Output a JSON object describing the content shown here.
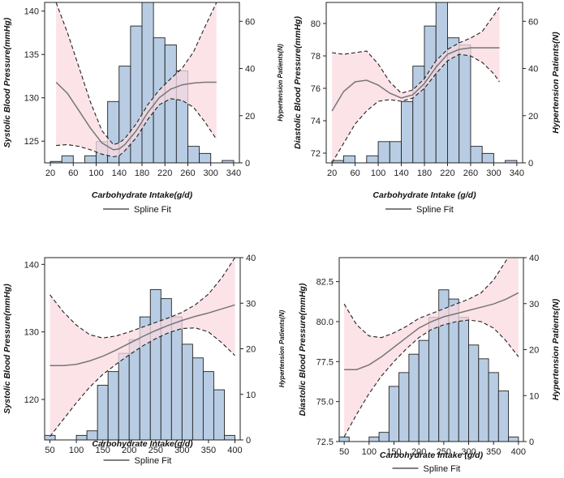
{
  "chart_data": [
    {
      "type": "bar",
      "title": "",
      "xlabel": "Carbohydrate Intake(g/d)",
      "ylabel": "Systolic Blood Pressure(mmHg)",
      "y2label": "Hypertension Patients(N)",
      "xlim": [
        10,
        350
      ],
      "ylim": [
        122.5,
        141
      ],
      "y2lim": [
        0,
        68
      ],
      "xticks": [
        20,
        60,
        100,
        140,
        180,
        220,
        260,
        300,
        340
      ],
      "yticks": [
        125,
        130,
        135,
        140
      ],
      "y2ticks": [
        0,
        20,
        40,
        60
      ],
      "bin_width": 20,
      "bins_center": [
        30,
        50,
        70,
        90,
        110,
        130,
        150,
        170,
        190,
        210,
        230,
        250,
        270,
        290,
        330
      ],
      "counts": [
        0.6,
        3,
        0,
        3,
        9,
        26,
        41,
        58,
        68,
        53,
        50,
        39,
        7,
        4,
        1
      ],
      "spline": {
        "x": [
          30,
          50,
          70,
          90,
          110,
          130,
          140,
          150,
          170,
          190,
          210,
          230,
          250,
          270,
          290,
          310
        ],
        "fit": [
          131.8,
          130.5,
          128.5,
          126.5,
          124.8,
          124.0,
          124.1,
          124.6,
          126.2,
          128.3,
          130.0,
          131.0,
          131.5,
          131.7,
          131.8,
          131.8
        ],
        "lower": [
          124.5,
          124.6,
          124.4,
          124.0,
          123.5,
          123.2,
          123.3,
          123.9,
          125.4,
          127.5,
          129.2,
          129.9,
          129.7,
          128.9,
          127.2,
          125.2
        ],
        "upper": [
          141.0,
          137.5,
          133.5,
          129.5,
          126.2,
          124.6,
          124.8,
          125.3,
          127.0,
          129.2,
          130.9,
          132.2,
          133.4,
          135.3,
          138.2,
          141.0
        ]
      },
      "legend": "Spline Fit"
    },
    {
      "type": "bar",
      "title": "",
      "xlabel": "Carbohydrate Intake (g/d)",
      "ylabel": "Diastolic Blood Pressure(mmHg)",
      "y2label": "Hypertension Patients(N)",
      "xlim": [
        10,
        350
      ],
      "ylim": [
        71.4,
        81.3
      ],
      "y2lim": [
        0,
        68
      ],
      "xticks": [
        20,
        60,
        100,
        140,
        180,
        220,
        260,
        300,
        340
      ],
      "yticks": [
        72,
        74,
        76,
        78,
        80
      ],
      "y2ticks": [
        0,
        20,
        40,
        60
      ],
      "bin_width": 20,
      "bins_center": [
        30,
        50,
        70,
        90,
        110,
        130,
        150,
        170,
        190,
        210,
        230,
        250,
        270,
        290,
        330
      ],
      "counts": [
        1,
        3,
        0,
        3,
        9,
        9,
        26,
        41,
        58,
        68,
        53,
        50,
        7,
        4,
        1
      ],
      "spline": {
        "x": [
          20,
          40,
          60,
          80,
          100,
          120,
          140,
          160,
          180,
          200,
          220,
          240,
          260,
          280,
          300,
          310
        ],
        "fit": [
          74.6,
          75.8,
          76.4,
          76.5,
          76.2,
          75.7,
          75.4,
          75.6,
          76.3,
          77.3,
          78.1,
          78.4,
          78.5,
          78.5,
          78.5,
          78.5
        ],
        "lower": [
          71.4,
          72.6,
          73.8,
          74.6,
          75.2,
          75.3,
          75.2,
          75.4,
          76.0,
          76.9,
          77.7,
          78.1,
          78.0,
          77.6,
          76.9,
          76.4
        ],
        "upper": [
          78.2,
          78.1,
          78.2,
          78.3,
          77.5,
          76.4,
          75.7,
          75.9,
          76.6,
          77.7,
          78.4,
          78.8,
          79.1,
          79.5,
          80.5,
          81.0
        ]
      },
      "legend": "Spline Fit"
    },
    {
      "type": "bar",
      "title": "",
      "xlabel": "Carbohydrate Intake(g/d)",
      "ylabel": "Systolic Blood Pressure(mmHg)",
      "y2label": "Hypertension Patients(N)",
      "xlim": [
        40,
        410
      ],
      "ylim": [
        114,
        141
      ],
      "y2lim": [
        0,
        40
      ],
      "xticks": [
        50,
        100,
        150,
        200,
        250,
        300,
        350,
        400
      ],
      "yticks": [
        120,
        130,
        140
      ],
      "y2ticks": [
        0,
        10,
        20,
        30,
        40
      ],
      "bin_width": 20,
      "bins_center": [
        50,
        90,
        110,
        130,
        150,
        170,
        190,
        210,
        230,
        250,
        270,
        290,
        310,
        330,
        350,
        370,
        390
      ],
      "counts": [
        1,
        0,
        1,
        2,
        12,
        15,
        19,
        22,
        27,
        33,
        31,
        27,
        21,
        18,
        15,
        11,
        1
      ],
      "spline": {
        "x": [
          50,
          75,
          100,
          125,
          150,
          175,
          200,
          225,
          250,
          275,
          300,
          325,
          350,
          375,
          400
        ],
        "fit": [
          125.0,
          125.0,
          125.2,
          125.7,
          126.4,
          127.3,
          128.3,
          129.3,
          130.2,
          131.0,
          131.7,
          132.3,
          132.8,
          133.4,
          134.0
        ],
        "lower": [
          114.5,
          117.0,
          119.5,
          121.8,
          123.7,
          125.2,
          126.6,
          127.9,
          129.0,
          129.9,
          130.5,
          130.6,
          130.0,
          128.4,
          126.5
        ],
        "upper": [
          135.5,
          133.0,
          131.0,
          129.6,
          129.1,
          129.4,
          130.0,
          130.7,
          131.4,
          132.1,
          132.9,
          134.0,
          135.6,
          138.0,
          141.0
        ]
      },
      "legend": "Spline Fit"
    },
    {
      "type": "bar",
      "title": "",
      "xlabel": "Carbohydrate Intake (g/d)",
      "ylabel": "Diastolic Blood Pressure(mmHg)",
      "y2label": "Hypertension Patients(N)",
      "xlim": [
        40,
        410
      ],
      "ylim": [
        72.5,
        84
      ],
      "y2lim": [
        0,
        40
      ],
      "xticks": [
        50,
        100,
        150,
        200,
        250,
        300,
        350,
        400
      ],
      "yticks": [
        72.5,
        75.0,
        77.5,
        80.0,
        82.5
      ],
      "y2ticks": [
        0,
        10,
        20,
        30,
        40
      ],
      "bin_width": 20,
      "bins_center": [
        50,
        90,
        110,
        130,
        150,
        170,
        190,
        210,
        230,
        250,
        270,
        290,
        310,
        330,
        350,
        370,
        390
      ],
      "counts": [
        1,
        0,
        1,
        2,
        12,
        15,
        19,
        22,
        27,
        33,
        31,
        27,
        21,
        18,
        15,
        11,
        1
      ],
      "spline": {
        "x": [
          50,
          75,
          100,
          125,
          150,
          175,
          200,
          225,
          250,
          275,
          300,
          325,
          350,
          375,
          400
        ],
        "fit": [
          77.0,
          77.0,
          77.3,
          77.8,
          78.4,
          79.0,
          79.6,
          80.0,
          80.3,
          80.5,
          80.7,
          80.9,
          81.1,
          81.4,
          81.8
        ],
        "lower": [
          72.8,
          74.2,
          75.5,
          76.6,
          77.5,
          78.3,
          79.0,
          79.5,
          79.8,
          80.0,
          80.1,
          80.0,
          79.6,
          78.8,
          77.8
        ],
        "upper": [
          81.1,
          79.8,
          79.1,
          79.0,
          79.3,
          79.7,
          80.2,
          80.5,
          80.8,
          81.1,
          81.4,
          81.8,
          82.6,
          83.8,
          85.0
        ]
      },
      "legend": "Spline Fit"
    }
  ],
  "colors": {
    "bar_fill": "#b8cde4",
    "bar_stroke": "#222222",
    "band_fill": "#f9d9e0",
    "fit_line": "#777777",
    "ci_line": "#222222"
  }
}
